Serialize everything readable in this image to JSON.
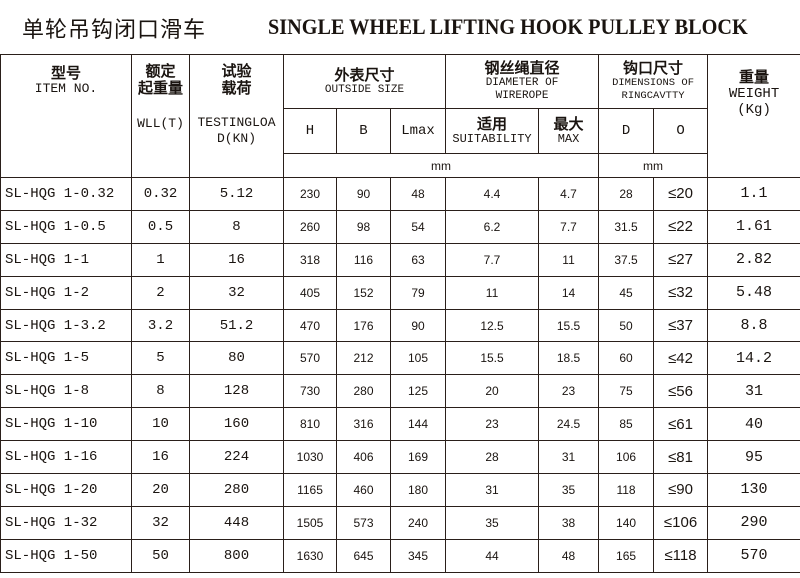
{
  "title": {
    "cn": "单轮吊钩闭口滑车",
    "en": "SINGLE WHEEL LIFTING HOOK PULLEY BLOCK"
  },
  "headers": {
    "item": {
      "cn": "型号",
      "en": "ITEM NO."
    },
    "wll": {
      "cn1": "额定",
      "cn2": "起重量",
      "en": "WLL(T)"
    },
    "test": {
      "cn1": "试验",
      "cn2": "载荷",
      "en1": "TESTINGLOA",
      "en2": "D(KN)"
    },
    "outside": {
      "cn": "外表尺寸",
      "en": "OUTSIDE SIZE",
      "h": "H",
      "b": "B",
      "lmax": "Lmax"
    },
    "wire": {
      "cn": "钢丝绳直径",
      "en1": "DIAMETER OF",
      "en2": "WIREROPE",
      "suit_cn": "适用",
      "suit_en": "SUITABILITY",
      "max_cn": "最大",
      "max_en": "MAX"
    },
    "ring": {
      "cn": "钩口尺寸",
      "en1": "DIMENSIONS OF",
      "en2": "RINGCAVTTY",
      "d": "D",
      "o": "O"
    },
    "weight": {
      "cn": "重量",
      "en1": "WEIGHT",
      "en2": "(Kg)"
    },
    "unit1": "mm",
    "unit2": "mm"
  },
  "rows": [
    [
      "SL-HQG 1-0.32",
      "0.32",
      "5.12",
      "230",
      "90",
      "48",
      "4.4",
      "4.7",
      "28",
      "≤20",
      "1.1"
    ],
    [
      "SL-HQG 1-0.5",
      "0.5",
      "8",
      "260",
      "98",
      "54",
      "6.2",
      "7.7",
      "31.5",
      "≤22",
      "1.61"
    ],
    [
      "SL-HQG 1-1",
      "1",
      "16",
      "318",
      "116",
      "63",
      "7.7",
      "11",
      "37.5",
      "≤27",
      "2.82"
    ],
    [
      "SL-HQG 1-2",
      "2",
      "32",
      "405",
      "152",
      "79",
      "11",
      "14",
      "45",
      "≤32",
      "5.48"
    ],
    [
      "SL-HQG 1-3.2",
      "3.2",
      "51.2",
      "470",
      "176",
      "90",
      "12.5",
      "15.5",
      "50",
      "≤37",
      "8.8"
    ],
    [
      "SL-HQG 1-5",
      "5",
      "80",
      "570",
      "212",
      "105",
      "15.5",
      "18.5",
      "60",
      "≤42",
      "14.2"
    ],
    [
      "SL-HQG 1-8",
      "8",
      "128",
      "730",
      "280",
      "125",
      "20",
      "23",
      "75",
      "≤56",
      "31"
    ],
    [
      "SL-HQG 1-10",
      "10",
      "160",
      "810",
      "316",
      "144",
      "23",
      "24.5",
      "85",
      "≤61",
      "40"
    ],
    [
      "SL-HQG 1-16",
      "16",
      "224",
      "1030",
      "406",
      "169",
      "28",
      "31",
      "106",
      "≤81",
      "95"
    ],
    [
      "SL-HQG 1-20",
      "20",
      "280",
      "1165",
      "460",
      "180",
      "31",
      "35",
      "118",
      "≤90",
      "130"
    ],
    [
      "SL-HQG 1-32",
      "32",
      "448",
      "1505",
      "573",
      "240",
      "35",
      "38",
      "140",
      "≤106",
      "290"
    ],
    [
      "SL-HQG 1-50",
      "50",
      "800",
      "1630",
      "645",
      "345",
      "44",
      "48",
      "165",
      "≤118",
      "570"
    ]
  ]
}
